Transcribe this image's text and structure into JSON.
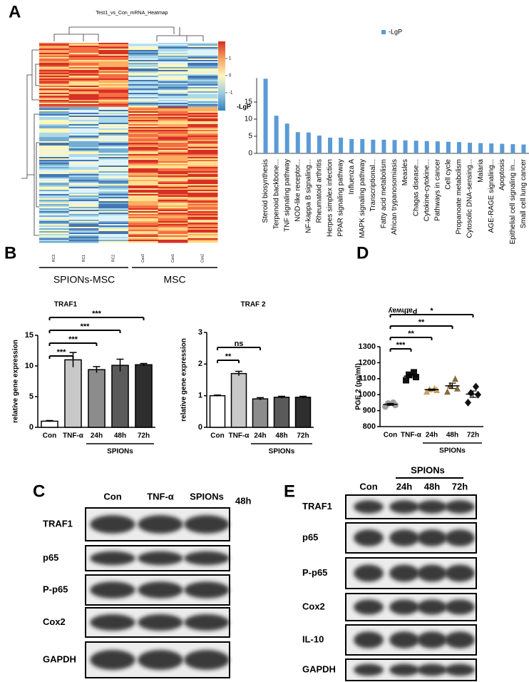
{
  "panel_labels": [
    "A",
    "B",
    "C",
    "D",
    "E"
  ],
  "heatmap": {
    "title": "Test1_vs_Con_mRNA_Heatmap",
    "colorbar_ticks": [
      1,
      0,
      -1
    ],
    "columns": [
      "RC3",
      "RC1",
      "RC2",
      "Con3",
      "Con1",
      "Con2"
    ],
    "groups": [
      "SPIONs-MSC",
      "MSC"
    ]
  },
  "chart_data": [
    {
      "type": "bar",
      "y_label": "-LgP",
      "x_label": "Pathway",
      "legend_position": "top",
      "categories": [
        "Steroid biosynthesis",
        "Terpenoid backbone...",
        "TNF signaling pathway",
        "NOD-like receptor...",
        "NF-kappa B signaling...",
        "Rheumatoid arthritis",
        "Herpes simplex infection",
        "PPAR signaling pathway",
        "Influenza A",
        "MAPK signaling pathway",
        "Transcriptional...",
        "Fatty acid metabolism",
        "African trypanosomiasis",
        "Measles",
        "Chagas disease...",
        "Cytokine-cytokine...",
        "Pathways in cancer",
        "Cell cycle",
        "Propanoate metabolism",
        "Cytosolic DNA-sensing...",
        "Malaria",
        "AGE-RAGE signaling...",
        "Apoptosis",
        "Epithelial cell signaling in...",
        "Small cell lung cancer"
      ],
      "series": [
        {
          "name": "-LgP",
          "color": "#5b9bd5",
          "values": [
            21.8,
            11.0,
            8.7,
            6.2,
            6.1,
            5.2,
            4.6,
            4.6,
            4.2,
            4.2,
            4.0,
            4.0,
            3.9,
            3.8,
            3.7,
            3.6,
            3.5,
            3.4,
            3.3,
            3.1,
            3.0,
            2.9,
            2.8,
            2.7,
            2.6
          ]
        }
      ],
      "ylim": [
        0,
        22
      ],
      "yticks": [
        0,
        5,
        10,
        15
      ]
    },
    {
      "type": "errbar",
      "title": "TRAF1",
      "y_label": "relative gene expression",
      "categories": [
        "Con",
        "TNF-α",
        "24h",
        "48h",
        "72h"
      ],
      "group_label": "SPIONs",
      "values": [
        1,
        11,
        9.4,
        10.1,
        10.2
      ],
      "errors": [
        0.1,
        1.2,
        0.5,
        1.0,
        0.2
      ],
      "colors": [
        "#ffffff",
        "#c8c8c8",
        "#8c8c8c",
        "#5a5a5a",
        "#2e2e2e"
      ],
      "ylim": [
        0,
        15
      ],
      "yticks": [
        0,
        5,
        10,
        15
      ],
      "significance": [
        "***",
        "***",
        "***",
        "***"
      ]
    },
    {
      "type": "errbar",
      "title": "TRAF 2",
      "y_label": "relative gene expression",
      "categories": [
        "Con",
        "TNF-α",
        "24h",
        "48h",
        "72h"
      ],
      "group_label": "SPIONs",
      "values": [
        1,
        1.7,
        0.9,
        0.95,
        0.95
      ],
      "errors": [
        0.02,
        0.07,
        0.04,
        0.03,
        0.03
      ],
      "colors": [
        "#ffffff",
        "#c8c8c8",
        "#8c8c8c",
        "#5a5a5a",
        "#2e2e2e"
      ],
      "ylim": [
        0,
        3
      ],
      "yticks": [
        0,
        1,
        2,
        3
      ],
      "significance": [
        "**",
        "ns"
      ]
    },
    {
      "type": "dot",
      "y_label": "PGE 2 (pg/ml)",
      "categories": [
        "Con",
        "TNF-α",
        "24h",
        "48h",
        "72h"
      ],
      "group_label": "SPIONs",
      "points": [
        [
          925,
          935,
          945,
          950
        ],
        [
          1090,
          1110,
          1125,
          1140
        ],
        [
          1020,
          1030,
          1035,
          1040
        ],
        [
          1020,
          1040,
          1060,
          1100
        ],
        [
          950,
          1000,
          1010,
          1050
        ]
      ],
      "means": [
        939,
        1116,
        1031,
        1055,
        1003
      ],
      "errors": [
        6,
        11,
        4,
        17,
        20
      ],
      "colors": [
        "#a0a0a0",
        "#111111",
        "#c8a060",
        "#8b6a3a",
        "#111111"
      ],
      "markers": [
        "circle",
        "square",
        "triangle",
        "triangle",
        "diamond"
      ],
      "ylim": [
        800,
        1300
      ],
      "yticks": [
        800,
        900,
        1000,
        1100,
        1200,
        1300
      ],
      "significance": [
        "***",
        "**",
        "**",
        "*"
      ]
    }
  ],
  "blot_c": {
    "lanes": [
      "Con",
      "TNF-α",
      "SPIONs"
    ],
    "time": "48h",
    "rows": [
      "TRAF1",
      "p65",
      "P-p65",
      "Cox2",
      "GAPDH"
    ]
  },
  "blot_e": {
    "group": "SPIONs",
    "lanes": [
      "Con",
      "24h",
      "48h",
      "72h"
    ],
    "rows": [
      "TRAF1",
      "p65",
      "P-p65",
      "Cox2",
      "IL-10",
      "GAPDH"
    ]
  }
}
